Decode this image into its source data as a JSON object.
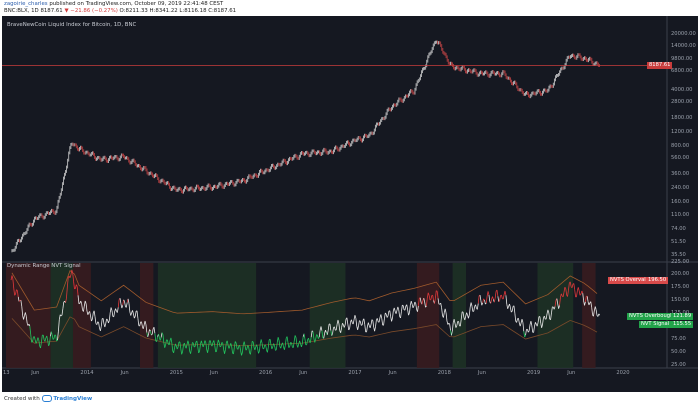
{
  "header": {
    "user": "zagoirie_charles",
    "published": "published on TradingView.com, October 09, 2019 22:41:48 CEST",
    "symbol": "BNC:BLX, 1D",
    "price": "8187.61",
    "change": "▼ −21.86 (−0.27%)",
    "ohlc": "O:8211.33 H:8341.22 L:8116.18 C:8187.61"
  },
  "main_pane": {
    "title": "BraveNewCoin Liquid Index for Bitcoin, 1D, BNC",
    "price_tag": "8187.61",
    "y_ticks": [
      "20000.00",
      "14000.00",
      "9800.00",
      "6800.00",
      "4000.00",
      "2800.00",
      "1800.00",
      "1200.00",
      "800.00",
      "560.00",
      "360.00",
      "240.00",
      "160.00",
      "110.00",
      "74.00",
      "51.50",
      "35.50"
    ]
  },
  "indicator_pane": {
    "title": "Dynamic Range NVT Signal",
    "y_ticks": [
      "225.00",
      "200.00",
      "175.00",
      "150.00",
      "125.00",
      "100.00",
      "75.00",
      "50.00",
      "25.00"
    ],
    "tags": {
      "overvalued": "NVTS Overvalued",
      "overvalued_value": "196.50",
      "overbought": "NVTS Overbought",
      "overbought_value": "121.89",
      "signal": "NVT Signal",
      "signal_value": "115.55"
    }
  },
  "x_axis": {
    "labels": [
      "13",
      "Jun",
      "2014",
      "Jun",
      "2015",
      "Jun",
      "2016",
      "Jun",
      "2017",
      "Jun",
      "2018",
      "Jun",
      "2019",
      "Jun",
      "2020"
    ]
  },
  "footer": {
    "created_with": "Created with",
    "brand": "TradingView"
  },
  "colors": {
    "background": "#151821",
    "price_line": "#c83c3c",
    "up": "#e8e8e8",
    "down": "#d84a4a",
    "nvt_green": "#22c55e",
    "nvt_red": "#e0393b",
    "band": "#a05a2c"
  },
  "chart_data": [
    {
      "type": "line",
      "title": "BraveNewCoin Liquid Index for Bitcoin, 1D, BNC",
      "scale": "log",
      "ylim": [
        30,
        24000
      ],
      "x": [
        "2013-03",
        "2013-06",
        "2013-09",
        "2013-11",
        "2013-12",
        "2014-03",
        "2014-06",
        "2014-09",
        "2015-01",
        "2015-06",
        "2015-10",
        "2016-01",
        "2016-06",
        "2016-10",
        "2017-01",
        "2017-03",
        "2017-06",
        "2017-09",
        "2017-12",
        "2018-02",
        "2018-06",
        "2018-09",
        "2018-12",
        "2019-03",
        "2019-06",
        "2019-08",
        "2019-10"
      ],
      "values": [
        40,
        100,
        130,
        900,
        750,
        550,
        600,
        400,
        230,
        250,
        300,
        400,
        650,
        700,
        950,
        1100,
        2500,
        4000,
        17500,
        8000,
        6500,
        6500,
        3500,
        4000,
        11000,
        10000,
        8187.61
      ]
    },
    {
      "type": "line",
      "title": "Dynamic Range NVT Signal",
      "ylim": [
        20,
        225
      ],
      "x": [
        "2013-03",
        "2013-06",
        "2013-09",
        "2013-11",
        "2013-12",
        "2014-03",
        "2014-06",
        "2014-09",
        "2015-01",
        "2015-06",
        "2015-10",
        "2016-01",
        "2016-06",
        "2016-10",
        "2017-01",
        "2017-03",
        "2017-06",
        "2017-09",
        "2017-12",
        "2018-02",
        "2018-06",
        "2018-09",
        "2018-12",
        "2019-03",
        "2019-06",
        "2019-08",
        "2019-10"
      ],
      "values": [
        190,
        70,
        80,
        210,
        150,
        100,
        150,
        95,
        60,
        65,
        58,
        62,
        70,
        95,
        110,
        100,
        125,
        140,
        160,
        95,
        150,
        160,
        90,
        120,
        180,
        155,
        115.55
      ]
    }
  ]
}
